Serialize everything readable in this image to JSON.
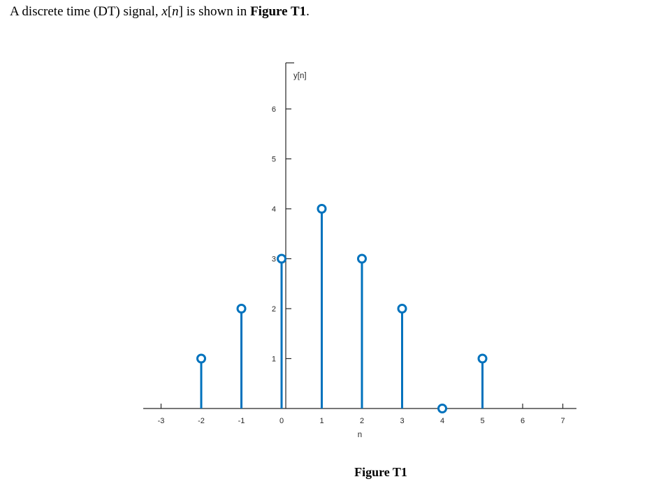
{
  "heading": {
    "part1": "A discrete time (DT) signal, ",
    "math_x": "x",
    "bracket_open": "[",
    "math_n": "n",
    "bracket_close": "]",
    "part2": " is shown in ",
    "figure_ref": "Figure T1",
    "period": "."
  },
  "figure": {
    "caption": "Figure T1"
  },
  "chart_data": {
    "type": "stem",
    "x": [
      -2,
      -1,
      0,
      1,
      2,
      3,
      4,
      5
    ],
    "values": [
      1,
      2,
      3,
      4,
      3,
      2,
      0,
      1
    ],
    "title": "",
    "ylabel": "y[n]",
    "xlabel": "n",
    "x_ticks": [
      -3,
      -2,
      -1,
      0,
      1,
      2,
      3,
      4,
      5,
      6,
      7
    ],
    "y_ticks": [
      1,
      2,
      3,
      4,
      5,
      6
    ],
    "xlim": [
      -3.5,
      7.5
    ],
    "ylim": [
      0,
      6.9
    ],
    "stem_color": "#0072BD",
    "marker_fill": "#ffffff",
    "axis_color": "#262626",
    "grid": "off",
    "legend": "none"
  }
}
